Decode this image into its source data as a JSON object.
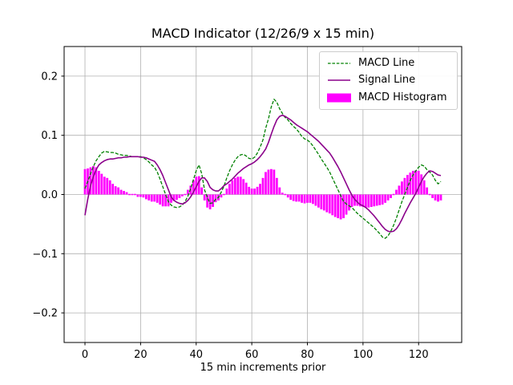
{
  "figure": {
    "title": "MACD Indicator (12/26/9 x 15 min)",
    "xlabel": "15 min increments prior",
    "background": "#ffffff"
  },
  "axes": {
    "xlim": [
      -7.5,
      135.5
    ],
    "ylim": [
      -0.25,
      0.25
    ],
    "xtick_values": [
      0,
      20,
      40,
      60,
      80,
      100,
      120
    ],
    "xtick_labels": [
      "0",
      "20",
      "40",
      "60",
      "80",
      "100",
      "120"
    ],
    "ytick_values": [
      -0.2,
      -0.1,
      0.0,
      0.1,
      0.2
    ],
    "ytick_labels": [
      "−0.2",
      "−0.1",
      "0.0",
      "0.1",
      "0.2"
    ],
    "grid": true,
    "grid_color": "#b0b0b0",
    "spine_color": "#000000"
  },
  "legend": {
    "location": "upper right",
    "entries": [
      {
        "label": "MACD Line",
        "type": "dashed-line",
        "color": "#008000"
      },
      {
        "label": "Signal Line",
        "type": "solid-line",
        "color": "#8b008b"
      },
      {
        "label": "MACD Histogram",
        "type": "patch",
        "color": "#ff00ff"
      }
    ]
  },
  "chart_data": {
    "type": "line+bar",
    "title": "MACD Indicator (12/26/9 x 15 min)",
    "xlabel": "15 min increments prior",
    "ylabel": "",
    "x_start": 0,
    "x_step": 1,
    "xlim": [
      -7.5,
      135.5
    ],
    "ylim": [
      -0.25,
      0.25
    ],
    "grid": true,
    "legend_position": "upper right",
    "series": [
      {
        "name": "MACD Line",
        "type": "line",
        "style": "dashed",
        "color": "#008000",
        "values": [
          0.01,
          0.022,
          0.035,
          0.047,
          0.057,
          0.064,
          0.07,
          0.073,
          0.072,
          0.071,
          0.071,
          0.07,
          0.068,
          0.067,
          0.066,
          0.066,
          0.065,
          0.064,
          0.064,
          0.064,
          0.064,
          0.062,
          0.059,
          0.055,
          0.05,
          0.046,
          0.038,
          0.026,
          0.013,
          0.0,
          -0.012,
          -0.018,
          -0.021,
          -0.022,
          -0.021,
          -0.018,
          -0.012,
          -0.003,
          0.01,
          0.025,
          0.04,
          0.05,
          0.035,
          0.008,
          -0.005,
          -0.015,
          -0.014,
          -0.008,
          -0.005,
          0.004,
          0.014,
          0.028,
          0.04,
          0.05,
          0.058,
          0.064,
          0.067,
          0.068,
          0.065,
          0.061,
          0.06,
          0.063,
          0.07,
          0.08,
          0.092,
          0.112,
          0.128,
          0.148,
          0.161,
          0.156,
          0.145,
          0.137,
          0.13,
          0.126,
          0.12,
          0.115,
          0.111,
          0.105,
          0.098,
          0.094,
          0.092,
          0.088,
          0.082,
          0.075,
          0.068,
          0.06,
          0.053,
          0.046,
          0.038,
          0.028,
          0.018,
          0.008,
          -0.002,
          -0.012,
          -0.016,
          -0.019,
          -0.022,
          -0.027,
          -0.032,
          -0.036,
          -0.04,
          -0.044,
          -0.048,
          -0.052,
          -0.056,
          -0.061,
          -0.066,
          -0.072,
          -0.074,
          -0.07,
          -0.062,
          -0.052,
          -0.04,
          -0.026,
          -0.012,
          0.0,
          0.012,
          0.024,
          0.033,
          0.04,
          0.046,
          0.05,
          0.048,
          0.042,
          0.038,
          0.033,
          0.024,
          0.018,
          0.022
        ]
      },
      {
        "name": "Signal Line",
        "type": "line",
        "style": "solid",
        "color": "#8b008b",
        "values": [
          -0.035,
          -0.008,
          0.015,
          0.03,
          0.042,
          0.05,
          0.054,
          0.057,
          0.059,
          0.06,
          0.06,
          0.061,
          0.062,
          0.062,
          0.063,
          0.063,
          0.064,
          0.064,
          0.064,
          0.064,
          0.063,
          0.063,
          0.062,
          0.06,
          0.058,
          0.056,
          0.05,
          0.042,
          0.032,
          0.02,
          0.008,
          -0.004,
          -0.01,
          -0.013,
          -0.015,
          -0.016,
          -0.014,
          -0.01,
          -0.004,
          0.004,
          0.013,
          0.022,
          0.028,
          0.028,
          0.022,
          0.012,
          0.008,
          0.006,
          0.006,
          0.01,
          0.015,
          0.018,
          0.022,
          0.026,
          0.031,
          0.036,
          0.04,
          0.044,
          0.047,
          0.05,
          0.052,
          0.055,
          0.059,
          0.064,
          0.07,
          0.077,
          0.088,
          0.102,
          0.115,
          0.126,
          0.132,
          0.134,
          0.132,
          0.129,
          0.126,
          0.122,
          0.118,
          0.115,
          0.112,
          0.109,
          0.106,
          0.102,
          0.098,
          0.094,
          0.09,
          0.085,
          0.08,
          0.075,
          0.07,
          0.063,
          0.055,
          0.047,
          0.038,
          0.028,
          0.018,
          0.008,
          -0.001,
          -0.008,
          -0.013,
          -0.017,
          -0.019,
          -0.022,
          -0.026,
          -0.031,
          -0.036,
          -0.042,
          -0.048,
          -0.054,
          -0.059,
          -0.062,
          -0.063,
          -0.062,
          -0.058,
          -0.051,
          -0.042,
          -0.032,
          -0.023,
          -0.014,
          -0.006,
          0.002,
          0.012,
          0.022,
          0.03,
          0.036,
          0.04,
          0.039,
          0.036,
          0.033,
          0.032
        ]
      },
      {
        "name": "MACD Histogram",
        "type": "bar",
        "color": "#ff00ff",
        "bar_width": 0.8,
        "values": [
          0.043,
          0.044,
          0.046,
          0.048,
          0.046,
          0.04,
          0.035,
          0.03,
          0.028,
          0.024,
          0.018,
          0.014,
          0.012,
          0.008,
          0.006,
          0.004,
          0.002,
          0.0,
          -0.002,
          -0.004,
          -0.004,
          -0.005,
          -0.008,
          -0.01,
          -0.012,
          -0.012,
          -0.014,
          -0.017,
          -0.02,
          -0.02,
          -0.02,
          -0.014,
          -0.011,
          -0.009,
          -0.006,
          -0.003,
          0.002,
          0.008,
          0.015,
          0.024,
          0.03,
          0.031,
          0.012,
          -0.01,
          -0.022,
          -0.025,
          -0.021,
          -0.013,
          -0.01,
          -0.005,
          -0.001,
          0.01,
          0.018,
          0.024,
          0.028,
          0.03,
          0.03,
          0.026,
          0.02,
          0.013,
          0.01,
          0.01,
          0.013,
          0.018,
          0.028,
          0.038,
          0.042,
          0.043,
          0.042,
          0.028,
          0.012,
          0.003,
          -0.002,
          -0.005,
          -0.009,
          -0.011,
          -0.012,
          -0.012,
          -0.014,
          -0.015,
          -0.014,
          -0.014,
          -0.016,
          -0.019,
          -0.022,
          -0.025,
          -0.027,
          -0.03,
          -0.032,
          -0.035,
          -0.038,
          -0.04,
          -0.042,
          -0.04,
          -0.034,
          -0.027,
          -0.021,
          -0.019,
          -0.019,
          -0.02,
          -0.021,
          -0.022,
          -0.022,
          -0.021,
          -0.02,
          -0.019,
          -0.018,
          -0.017,
          -0.014,
          -0.01,
          -0.006,
          -0.002,
          0.008,
          0.015,
          0.022,
          0.028,
          0.033,
          0.037,
          0.04,
          0.041,
          0.04,
          0.034,
          0.024,
          0.012,
          0.0,
          -0.006,
          -0.01,
          -0.012,
          -0.01
        ]
      }
    ]
  }
}
